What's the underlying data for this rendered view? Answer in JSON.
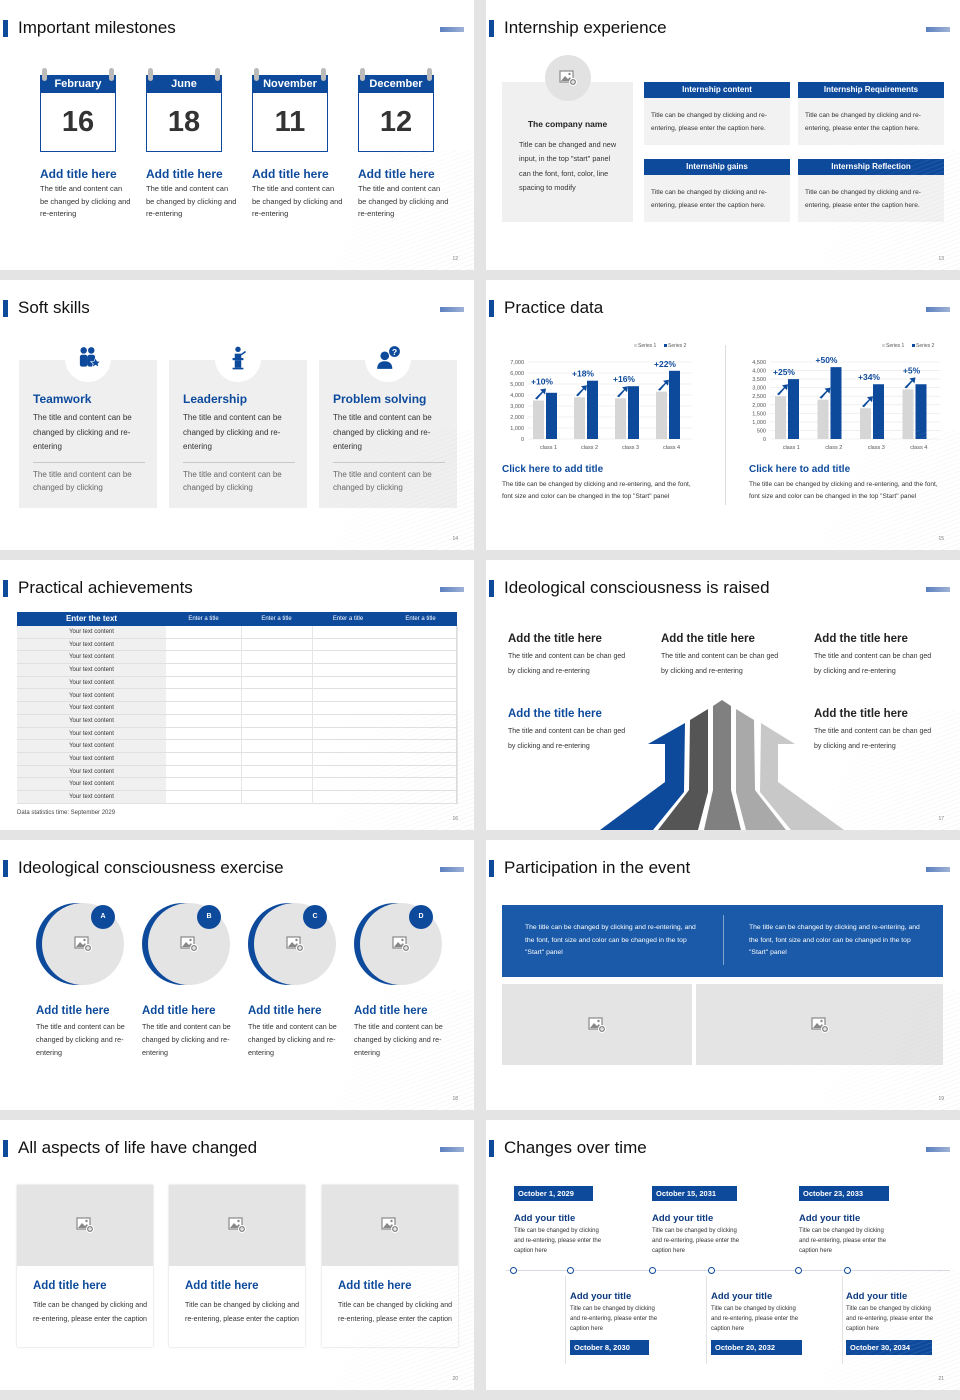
{
  "colors": {
    "primary": "#0d4a9c",
    "panel": "#f0f0f0",
    "placeholder": "#e5e4e4",
    "series1": "#d6d6d6",
    "series2": "#0d4a9c"
  },
  "slides": [
    {
      "num": "12",
      "title": "Important milestones",
      "calendars": [
        {
          "month": "February",
          "day": "16",
          "title": "Add title here",
          "text": "The title and content can be changed by clicking and re-entering"
        },
        {
          "month": "June",
          "day": "18",
          "title": "Add title here",
          "text": "The title and content can be changed by clicking and re-entering"
        },
        {
          "month": "November",
          "day": "11",
          "title": "Add title here",
          "text": "The title and content can be changed by clicking and re-entering"
        },
        {
          "month": "December",
          "day": "12",
          "title": "Add title here",
          "text": "The title and content can be changed by clicking and re-entering"
        }
      ]
    },
    {
      "num": "13",
      "title": "Internship experience",
      "company": {
        "name": "The company name",
        "text": "Title can be changed and new input, in the top \"start\" panel can the font, font, color, line spacing to modify",
        "icon": "image-placeholder-icon"
      },
      "boxes": [
        {
          "header": "Internship content",
          "text": "Title can be changed by clicking and re-entering, please enter the caption here."
        },
        {
          "header": "Internship Requirements",
          "text": "Title can be changed by clicking and re-entering, please enter the caption here."
        },
        {
          "header": "Internship gains",
          "text": "Title can be changed by clicking and re-entering, please enter the caption here."
        },
        {
          "header": "Internship Reflection",
          "text": "Title can be changed by clicking and re-entering, please enter the caption here."
        }
      ]
    },
    {
      "num": "14",
      "title": "Soft skills",
      "cards": [
        {
          "icon": "teamwork-icon",
          "title": "Teamwork",
          "text": "The title and content can be changed by clicking and re-entering",
          "subtext": "The title and content can be changed by clicking"
        },
        {
          "icon": "leadership-podium-icon",
          "title": "Leadership",
          "text": "The title and content can be changed by clicking and re-entering",
          "subtext": "The title and content can be changed by clicking"
        },
        {
          "icon": "person-question-icon",
          "title": "Problem solving",
          "text": "The title and content can be changed by clicking and re-entering",
          "subtext": "The title and content can be changed by clicking"
        }
      ]
    },
    {
      "num": "15",
      "title": "Practice data",
      "captions": [
        {
          "title": "Click here to add title",
          "text": "The title can be changed by clicking and re-entering, and the font, font size and color can be changed in the top \"Start\" panel"
        },
        {
          "title": "Click here to add title",
          "text": "The title can be changed by clicking and re-entering, and the font, font size and color can be changed in the top \"Start\" panel"
        }
      ]
    },
    {
      "num": "16",
      "title": "Practical achievements",
      "table": {
        "headers": [
          "Enter the text",
          "Enter a title",
          "Enter a title",
          "Enter a title",
          "Enter a title"
        ],
        "rows": [
          "Your text content",
          "Your text content",
          "Your text content",
          "Your text content",
          "Your text content",
          "Your text content",
          "Your text content",
          "Your text content",
          "Your text content",
          "Your text content",
          "Your text content",
          "Your text content",
          "Your text content",
          "Your text content"
        ]
      },
      "footer": "Data statistics time: September 2029"
    },
    {
      "num": "17",
      "title": "Ideological consciousness is raised",
      "items": [
        {
          "title": "Add the title here",
          "text": "The title and content can be chan ged by clicking and re-entering"
        },
        {
          "title": "Add the title here",
          "text": "The title and content can be chan ged by clicking and re-entering"
        },
        {
          "title": "Add the title here",
          "text": "The title and content can be chan ged by clicking and re-entering"
        },
        {
          "title": "Add the title here",
          "text": "The title and content can be chan ged by clicking and re-entering"
        },
        {
          "title": "Add the title here",
          "text": "The title and content can be chan ged by clicking and re-entering"
        }
      ]
    },
    {
      "num": "18",
      "title": "Ideological consciousness exercise",
      "items": [
        {
          "badge": "A",
          "title": "Add title here",
          "text": "The title and content can be changed by clicking and re-entering"
        },
        {
          "badge": "B",
          "title": "Add title here",
          "text": "The title and content can be changed by clicking and re-entering"
        },
        {
          "badge": "C",
          "title": "Add title here",
          "text": "The title and content can be changed by clicking and re-entering"
        },
        {
          "badge": "D",
          "title": "Add title here",
          "text": "The title and content can be changed by clicking and re-entering"
        }
      ]
    },
    {
      "num": "19",
      "title": "Participation in the event",
      "texts": [
        "The title can be changed by clicking and re-entering, and the font, font size and color can be changed in the top \"Start\" panel",
        "The title can be changed by clicking and re-entering, and the font, font size and color can be changed in the top \"Start\" panel"
      ]
    },
    {
      "num": "20",
      "title": "All aspects of life have changed",
      "cards": [
        {
          "title": "Add title here",
          "text": "Title can be changed by clicking and re-entering, please enter the caption"
        },
        {
          "title": "Add title here",
          "text": "Title can be changed by clicking and re-entering, please enter the caption"
        },
        {
          "title": "Add title here",
          "text": "Title can be changed by clicking and re-entering, please enter the caption"
        }
      ]
    },
    {
      "num": "21",
      "title": "Changes over time",
      "events": [
        {
          "date": "October 1, 2029",
          "title": "Add your title",
          "text": "Title can be changed by clicking and re-entering, please enter the caption here"
        },
        {
          "date": "October 8, 2030",
          "title": "Add your title",
          "text": "Title can be changed by clicking and re-entering, please enter the caption here"
        },
        {
          "date": "October 15, 2031",
          "title": "Add your title",
          "text": "Title can be changed by clicking and re-entering, please enter the caption here"
        },
        {
          "date": "October 20, 2032",
          "title": "Add your title",
          "text": "Title can be changed by clicking and re-entering, please enter the caption here"
        },
        {
          "date": "October 23, 2033",
          "title": "Add your title",
          "text": "Title can be changed by clicking and re-entering, please enter the caption here"
        },
        {
          "date": "October 30, 2034",
          "title": "Add your title",
          "text": "Title can be changed by clicking and re-entering, please enter the caption here"
        }
      ]
    }
  ],
  "chart_data": [
    {
      "type": "bar",
      "categories": [
        "class 1",
        "class 2",
        "class 3",
        "class 4"
      ],
      "series": [
        {
          "name": "Series 1",
          "values": [
            3500,
            3800,
            3700,
            4300
          ]
        },
        {
          "name": "Series 2",
          "values": [
            4200,
            5300,
            4800,
            6200
          ]
        }
      ],
      "ylim": [
        0,
        7000
      ],
      "ytick_step": 1000,
      "yticks": [
        "0",
        "1,000",
        "2,000",
        "3,000",
        "4,000",
        "5,000",
        "6,000",
        "7,000"
      ],
      "annotations": [
        "+10%",
        "+18%",
        "+16%",
        "+22%"
      ],
      "legend": "top-right",
      "grid": true
    },
    {
      "type": "bar",
      "categories": [
        "class 1",
        "class 2",
        "class 3",
        "class 4"
      ],
      "series": [
        {
          "name": "Series 1",
          "values": [
            2500,
            2300,
            1800,
            2900
          ]
        },
        {
          "name": "Series 2",
          "values": [
            3500,
            4200,
            3200,
            3200
          ]
        }
      ],
      "ylim": [
        0,
        4500
      ],
      "ytick_step": 500,
      "yticks": [
        "0",
        "500",
        "1,000",
        "1,500",
        "2,000",
        "2,500",
        "3,000",
        "3,500",
        "4,000",
        "4,500"
      ],
      "annotations": [
        "+25%",
        "+50%",
        "+34%",
        "+5%"
      ],
      "legend": "top-right",
      "grid": true
    }
  ]
}
